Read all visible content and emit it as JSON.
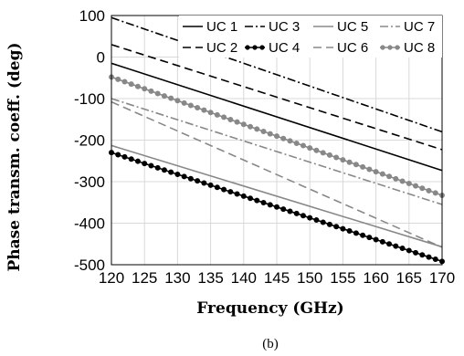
{
  "chart_data": {
    "type": "line",
    "xlabel": "Frequency (GHz)",
    "ylabel": "Phase transm. coeff. (deg)",
    "caption": "(b)",
    "xlim": [
      120,
      170
    ],
    "ylim": [
      -500,
      100
    ],
    "xticks": [
      120,
      125,
      130,
      135,
      140,
      145,
      150,
      155,
      160,
      165,
      170
    ],
    "yticks": [
      100,
      0,
      -100,
      -200,
      -300,
      -400,
      -500
    ],
    "grid": true,
    "legend_position": "top-right",
    "series": [
      {
        "name": "UC 1",
        "x": [
          120,
          170
        ],
        "y": [
          -15,
          -273
        ],
        "color": "#000000",
        "dash": "solid",
        "marker": false
      },
      {
        "name": "UC 2",
        "x": [
          120,
          170
        ],
        "y": [
          30,
          -223
        ],
        "color": "#000000",
        "dash": "dashed",
        "marker": false
      },
      {
        "name": "UC 3",
        "x": [
          120,
          170
        ],
        "y": [
          95,
          -180
        ],
        "color": "#000000",
        "dashdot": true,
        "dash": "dashdot",
        "marker": false
      },
      {
        "name": "UC 4",
        "x": [
          120,
          170
        ],
        "y": [
          -230,
          -492
        ],
        "color": "#000000",
        "dash": "solid",
        "marker": true
      },
      {
        "name": "UC 5",
        "x": [
          120,
          170
        ],
        "y": [
          -213,
          -457
        ],
        "color": "#888888",
        "dash": "solid",
        "marker": false
      },
      {
        "name": "UC 6",
        "x": [
          120,
          170
        ],
        "y": [
          -108,
          -458
        ],
        "color": "#888888",
        "dash": "dashed",
        "marker": false
      },
      {
        "name": "UC 7",
        "x": [
          120,
          170
        ],
        "y": [
          -100,
          -355
        ],
        "color": "#888888",
        "dash": "dashdot",
        "marker": false
      },
      {
        "name": "UC 8",
        "x": [
          120,
          170
        ],
        "y": [
          -48,
          -333
        ],
        "color": "#888888",
        "dash": "solid",
        "marker": true
      }
    ]
  }
}
